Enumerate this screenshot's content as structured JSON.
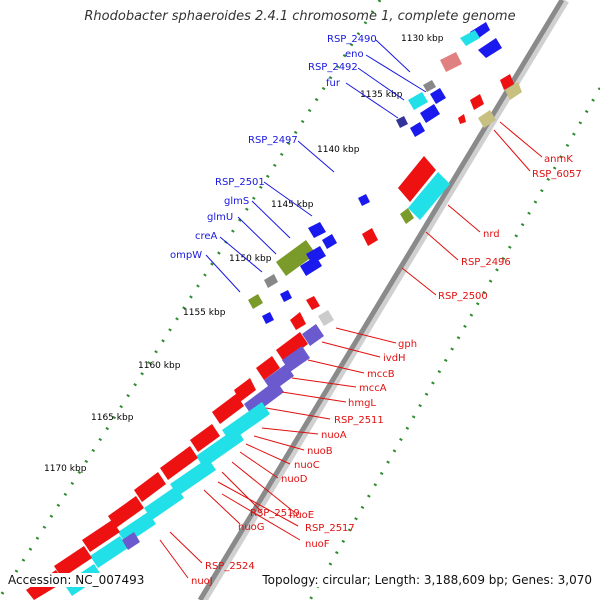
{
  "title": "Rhodobacter sphaeroides 2.4.1 chromosome 1, complete genome",
  "accession_text": "Accession: NC_007493",
  "summary_text": "Topology: circular; Length: 3,188,609 bp; Genes: 3,070",
  "colors": {
    "backbone": "#8a8a8a",
    "ticks": "#2e8b2e",
    "forward_label": "#1818e0",
    "reverse_label": "#e01010",
    "gene_red": "#ee1111",
    "gene_blue": "#1a1aee",
    "cds_cyan": "#22e0e8",
    "olive": "#7a9a2a",
    "purple": "#6a5acd",
    "gray": "#888888",
    "khaki": "#c8c080",
    "pink": "#e08080"
  },
  "scale": {
    "labels": [
      "1130 kbp",
      "1135 kbp",
      "1140 kbp",
      "1145 kbp",
      "1150 kbp",
      "1155 kbp",
      "1160 kbp",
      "1165 kbp",
      "1170 kbp"
    ]
  },
  "forward_labels": [
    "RSP_2490",
    "eno",
    "RSP_2492",
    "fur",
    "RSP_2497",
    "RSP_2501",
    "glmS",
    "glmU",
    "creA",
    "ompW"
  ],
  "reverse_labels": [
    "anmK",
    "RSP_6057",
    "nrd",
    "RSP_2496",
    "RSP_2500",
    "gph",
    "ivdH",
    "mccB",
    "mccA",
    "hmgL",
    "RSP_2511",
    "nuoA",
    "nuoB",
    "nuoC",
    "nuoD",
    "nuoE",
    "RSP_2519",
    "RSP_2517",
    "nuoG",
    "nuoF",
    "RSP_2524",
    "nuoJ"
  ]
}
